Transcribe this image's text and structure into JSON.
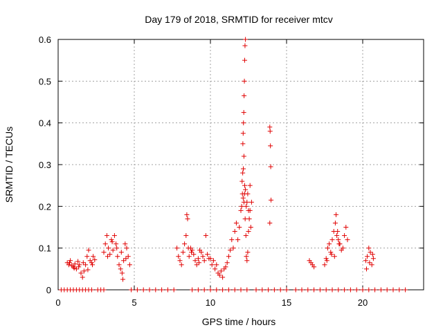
{
  "chart_data": {
    "type": "scatter",
    "title": "Day 179 of 2018, SRMTID for receiver mtcv",
    "xlabel": "GPS time / hours",
    "ylabel": "SRMTID / TECUs",
    "xlim": [
      0,
      24
    ],
    "ylim": [
      0,
      0.6
    ],
    "xticks": [
      0,
      5,
      10,
      15,
      20
    ],
    "yticks": [
      0,
      0.1,
      0.2,
      0.3,
      0.4,
      0.5,
      0.6
    ],
    "xtick_labels": [
      "0",
      "5",
      "10",
      "15",
      "20"
    ],
    "ytick_labels": [
      "0",
      "0.1",
      "0.2",
      "0.3",
      "0.4",
      "0.5",
      "0.6"
    ],
    "grid": true,
    "marker": "plus",
    "color": "#e00000",
    "series": [
      {
        "name": "SRMTID",
        "x": [
          0.6,
          0.7,
          0.8,
          0.9,
          1.0,
          1.1,
          1.2,
          1.3,
          1.4,
          1.5,
          1.6,
          1.7,
          1.8,
          1.9,
          2.0,
          2.1,
          2.2,
          2.3,
          2.4,
          0.75,
          1.05,
          1.35,
          1.65,
          1.95,
          2.25,
          3.0,
          3.1,
          3.2,
          3.3,
          3.4,
          3.5,
          3.6,
          3.7,
          3.8,
          3.9,
          4.0,
          4.1,
          4.2,
          4.3,
          4.4,
          4.5,
          4.6,
          4.7,
          3.25,
          3.55,
          3.85,
          4.15,
          4.45,
          4.25,
          7.8,
          7.9,
          8.0,
          8.1,
          8.2,
          8.3,
          8.4,
          8.5,
          8.6,
          8.7,
          8.8,
          8.9,
          9.0,
          9.1,
          9.2,
          9.3,
          9.4,
          9.5,
          9.6,
          9.7,
          9.8,
          9.9,
          8.45,
          8.55,
          8.75,
          9.25,
          10.0,
          10.1,
          10.2,
          10.3,
          10.4,
          10.5,
          10.6,
          10.7,
          10.8,
          10.9,
          11.0,
          11.1,
          11.2,
          11.3,
          11.4,
          11.5,
          11.6,
          11.7,
          11.8,
          11.9,
          12.0,
          12.05,
          12.1,
          12.15,
          12.2,
          12.25,
          12.3,
          12.35,
          12.4,
          12.45,
          12.5,
          12.6,
          12.7,
          12.08,
          12.12,
          12.16,
          12.2,
          12.24,
          12.28,
          12.13,
          12.15,
          12.17,
          12.19,
          12.21,
          12.23,
          12.25,
          12.27,
          12.3,
          12.33,
          12.36,
          12.4,
          12.45,
          12.5,
          12.55,
          12.6,
          12.65,
          13.9,
          13.92,
          13.94,
          13.96,
          13.98,
          13.9,
          16.5,
          16.6,
          16.7,
          16.8,
          17.5,
          17.6,
          17.7,
          17.8,
          17.9,
          18.0,
          18.1,
          18.2,
          18.3,
          18.4,
          18.5,
          18.6,
          18.7,
          18.8,
          18.9,
          19.0,
          18.25,
          18.35,
          18.45,
          17.65,
          17.95,
          18.15,
          20.2,
          20.3,
          20.4,
          20.5,
          20.6,
          20.7,
          20.25,
          20.45,
          20.65,
          0.2,
          0.4,
          0.6,
          0.8,
          1.0,
          1.2,
          1.4,
          1.6,
          1.8,
          2.0,
          2.2,
          2.6,
          2.8,
          3.0,
          4.8,
          5.2,
          5.6,
          6.0,
          6.4,
          6.8,
          7.2,
          7.6,
          8.8,
          9.2,
          9.6,
          10.0,
          10.4,
          10.8,
          11.2,
          11.6,
          12.0,
          12.4,
          13.0,
          13.4,
          13.8,
          14.2,
          14.6,
          15.0,
          15.6,
          16.0,
          16.4,
          16.8,
          17.2,
          17.6,
          18.0,
          18.4,
          18.8,
          19.2,
          19.6,
          20.0,
          20.4,
          20.8,
          21.2,
          21.6,
          22.0,
          22.4,
          22.8
        ],
        "y": [
          0.065,
          0.06,
          0.07,
          0.058,
          0.055,
          0.062,
          0.05,
          0.068,
          0.06,
          0.04,
          0.03,
          0.045,
          0.06,
          0.08,
          0.095,
          0.07,
          0.065,
          0.08,
          0.072,
          0.065,
          0.052,
          0.055,
          0.065,
          0.048,
          0.06,
          0.09,
          0.11,
          0.13,
          0.1,
          0.085,
          0.12,
          0.095,
          0.13,
          0.11,
          0.08,
          0.06,
          0.05,
          0.04,
          0.07,
          0.11,
          0.1,
          0.08,
          0.06,
          0.08,
          0.115,
          0.1,
          0.09,
          0.075,
          0.025,
          0.1,
          0.08,
          0.07,
          0.06,
          0.09,
          0.11,
          0.13,
          0.17,
          0.08,
          0.1,
          0.095,
          0.085,
          0.07,
          0.06,
          0.075,
          0.095,
          0.09,
          0.08,
          0.07,
          0.13,
          0.085,
          0.075,
          0.18,
          0.1,
          0.09,
          0.065,
          0.075,
          0.06,
          0.07,
          0.05,
          0.06,
          0.04,
          0.035,
          0.045,
          0.03,
          0.05,
          0.055,
          0.065,
          0.08,
          0.095,
          0.12,
          0.1,
          0.14,
          0.16,
          0.12,
          0.15,
          0.19,
          0.2,
          0.23,
          0.22,
          0.21,
          0.25,
          0.24,
          0.2,
          0.21,
          0.23,
          0.19,
          0.25,
          0.21,
          0.26,
          0.28,
          0.29,
          0.32,
          0.23,
          0.17,
          0.35,
          0.375,
          0.4,
          0.425,
          0.465,
          0.5,
          0.55,
          0.585,
          0.6,
          0.13,
          0.08,
          0.07,
          0.09,
          0.14,
          0.17,
          0.19,
          0.15,
          0.39,
          0.38,
          0.345,
          0.295,
          0.215,
          0.16,
          0.07,
          0.065,
          0.06,
          0.055,
          0.06,
          0.075,
          0.1,
          0.11,
          0.09,
          0.12,
          0.14,
          0.16,
          0.13,
          0.12,
          0.11,
          0.095,
          0.1,
          0.13,
          0.15,
          0.12,
          0.18,
          0.14,
          0.11,
          0.07,
          0.085,
          0.08,
          0.07,
          0.08,
          0.1,
          0.09,
          0.06,
          0.075,
          0.05,
          0.065,
          0.085,
          0,
          0,
          0,
          0,
          0,
          0,
          0,
          0,
          0,
          0,
          0,
          0,
          0,
          0,
          0,
          0,
          0,
          0,
          0,
          0,
          0,
          0,
          0,
          0,
          0,
          0,
          0,
          0,
          0,
          0,
          0,
          0,
          0,
          0,
          0,
          0,
          0,
          0,
          0,
          0,
          0,
          0,
          0,
          0,
          0,
          0,
          0,
          0,
          0,
          0,
          0,
          0,
          0,
          0,
          0,
          0,
          0
        ]
      }
    ]
  }
}
